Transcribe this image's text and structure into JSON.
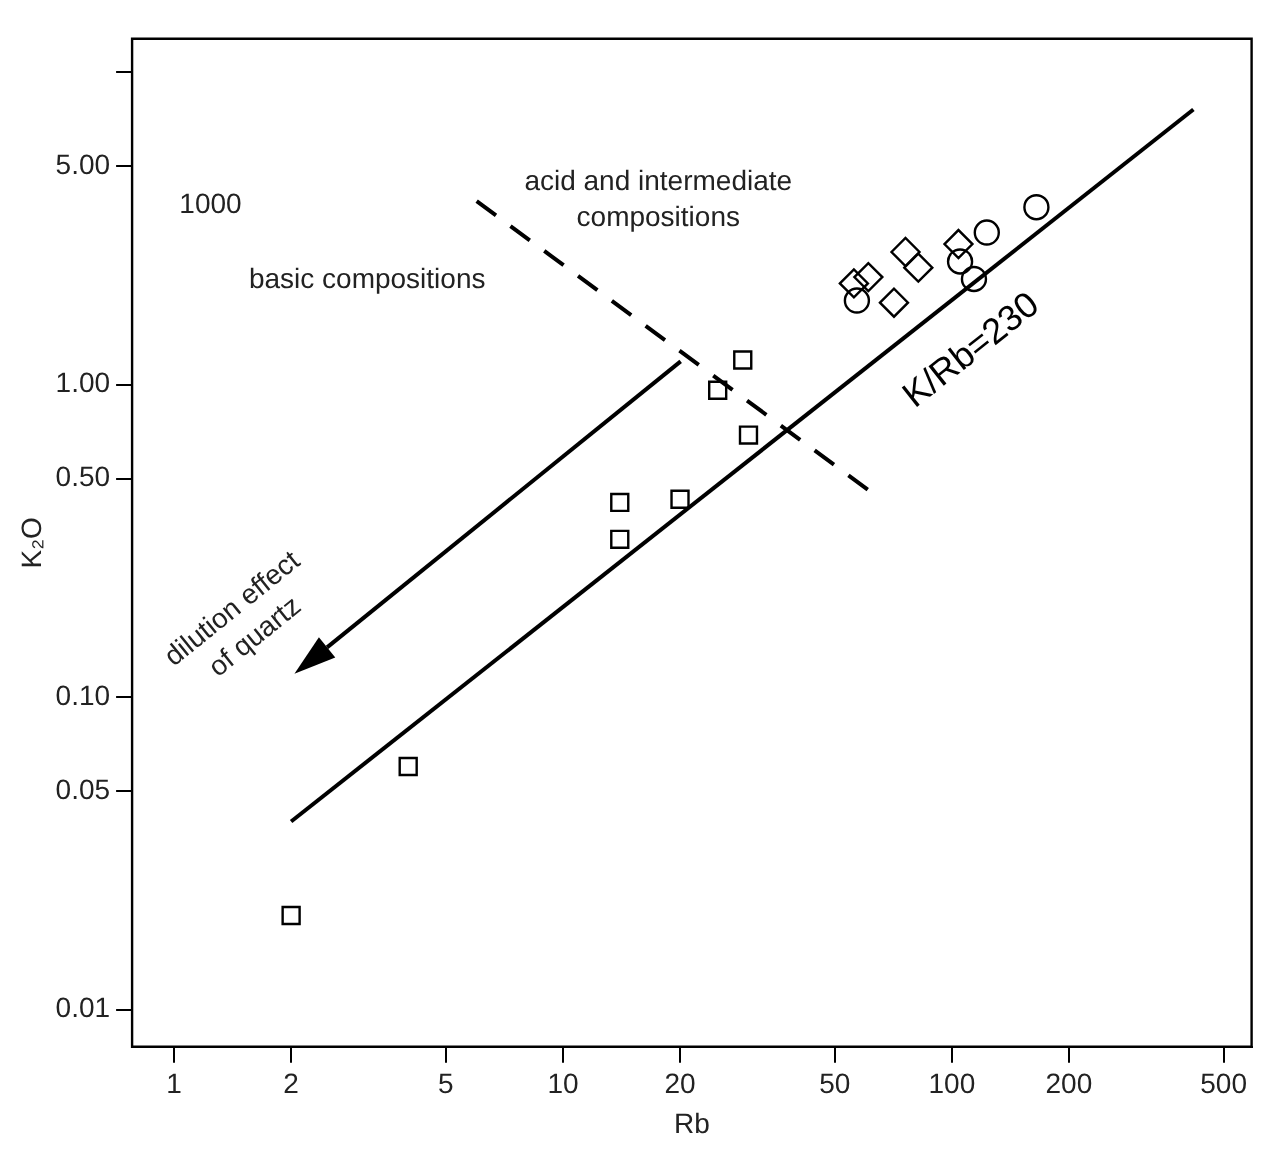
{
  "chart_data": {
    "type": "scatter",
    "xlabel": "Rb",
    "ylabel": "K₂O",
    "log": "xy",
    "grid": false,
    "legend": false,
    "xlim": [
      0.78,
      590
    ],
    "ylim": [
      0.0076,
      12.8
    ],
    "xticks": [
      1,
      2,
      5,
      10,
      20,
      50,
      100,
      200,
      500
    ],
    "yticks": [
      0.01,
      0.05,
      {
        "value": 0.1,
        "label": "0.10"
      },
      {
        "value": 0.5,
        "label": "0.50"
      },
      {
        "value": 1,
        "label": "1.00"
      },
      {
        "value": 5,
        "label": "5.00"
      },
      {
        "value": 10,
        "label": null
      }
    ],
    "annotations": [
      "acid and intermediate compositions",
      "basic compositions",
      "dilution effect of quartz",
      "1000"
    ],
    "series": [
      {
        "marker": "square",
        "color": "#000000",
        "x": [
          2,
          4,
          14,
          14,
          20,
          25,
          29,
          30
        ],
        "values": [
          0.02,
          0.06,
          0.42,
          0.32,
          0.43,
          0.96,
          1.2,
          0.69
        ]
      },
      {
        "marker": "diamond",
        "color": "#000000",
        "x": [
          56,
          61,
          76,
          82,
          71,
          104
        ],
        "values": [
          2.11,
          2.21,
          2.66,
          2.37,
          1.83,
          2.82
        ]
      },
      {
        "marker": "circle",
        "color": "#000000",
        "x": [
          57,
          105,
          114,
          123,
          165
        ],
        "values": [
          1.86,
          2.48,
          2.18,
          3.07,
          3.7
        ]
      },
      {
        "type": "line",
        "name": "K/Rb=230",
        "color": "#000000",
        "line_style": "solid",
        "x": [
          2,
          418
        ],
        "values": [
          0.04,
          7.6
        ]
      },
      {
        "type": "line",
        "color": "#000000",
        "line_style": "dashed",
        "x": [
          6,
          61
        ],
        "values": [
          3.87,
          0.46
        ]
      }
    ]
  }
}
